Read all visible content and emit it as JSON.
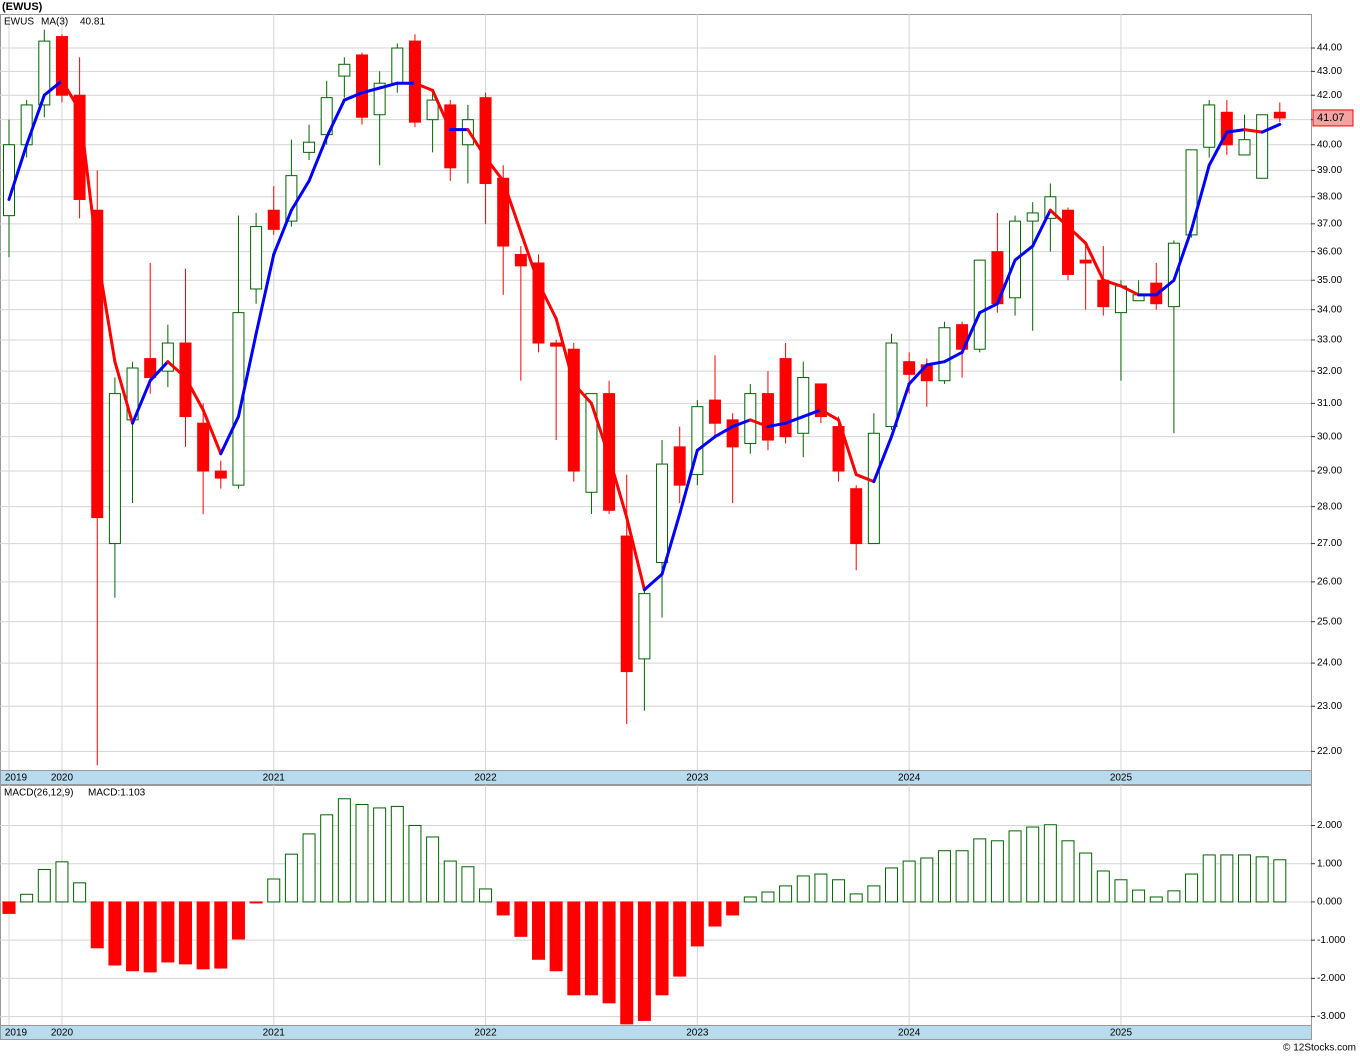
{
  "title": "(EWUS)",
  "footer": "© 12Stocks.com",
  "chart_data": [
    {
      "type": "candlestick",
      "name": "EWUS",
      "categories": [
        null,
        null,
        null,
        null,
        null,
        null,
        null,
        null,
        null,
        null,
        null,
        null,
        null,
        null,
        null,
        null,
        null,
        null,
        null,
        null,
        null,
        null,
        null,
        null,
        null,
        null,
        null,
        null,
        null,
        null,
        null,
        null,
        null,
        null,
        null,
        null,
        null,
        null,
        null,
        null,
        null,
        null,
        null,
        null,
        null,
        null,
        null,
        null,
        null,
        null,
        null,
        null,
        null,
        null,
        null,
        null,
        null,
        null,
        null,
        null,
        null,
        null,
        null,
        null,
        null,
        null,
        null,
        null,
        null,
        null,
        null,
        null,
        null
      ],
      "open": [
        37.3,
        40.0,
        41.6,
        44.5,
        42.0,
        37.5,
        27.0,
        30.5,
        32.4,
        32.0,
        32.9,
        30.4,
        29.0,
        28.6,
        34.7,
        37.5,
        37.1,
        39.7,
        40.4,
        42.8,
        43.7,
        41.2,
        42.5,
        44.3,
        41.0,
        41.6,
        40.0,
        41.9,
        38.7,
        35.9,
        35.6,
        32.9,
        32.7,
        28.4,
        31.3,
        27.2,
        24.1,
        26.5,
        29.7,
        28.9,
        31.1,
        30.5,
        29.8,
        31.3,
        32.4,
        30.1,
        31.6,
        30.3,
        28.5,
        27.0,
        30.3,
        32.3,
        32.2,
        31.7,
        33.5,
        32.7,
        36.0,
        34.4,
        37.1,
        37.2,
        37.5,
        35.7,
        35.0,
        33.9,
        34.3,
        34.9,
        34.1,
        36.6,
        39.9,
        41.3,
        39.6,
        38.7,
        41.3
      ],
      "high": [
        41.0,
        41.8,
        44.8,
        44.6,
        43.6,
        39.0,
        31.8,
        32.3,
        35.6,
        33.5,
        35.4,
        31.0,
        29.3,
        37.3,
        37.4,
        38.4,
        40.2,
        40.8,
        42.6,
        43.6,
        43.8,
        43.0,
        44.2,
        44.6,
        42.2,
        41.8,
        41.6,
        42.1,
        39.2,
        36.2,
        35.9,
        33.0,
        32.9,
        31.3,
        31.7,
        28.9,
        25.8,
        29.9,
        30.3,
        31.1,
        32.5,
        30.7,
        31.6,
        32.0,
        32.9,
        32.3,
        31.6,
        30.6,
        28.6,
        30.7,
        33.2,
        32.6,
        32.4,
        33.6,
        33.6,
        35.7,
        37.4,
        37.3,
        37.8,
        38.5,
        37.6,
        36.2,
        36.2,
        35.0,
        35.0,
        35.6,
        36.4,
        39.8,
        41.8,
        41.8,
        41.2,
        41.2,
        41.7
      ],
      "low": [
        35.8,
        39.5,
        41.1,
        41.7,
        37.2,
        21.7,
        25.6,
        28.1,
        31.3,
        31.5,
        29.7,
        27.8,
        28.5,
        28.5,
        34.2,
        36.6,
        36.9,
        39.4,
        40.0,
        41.9,
        40.8,
        39.2,
        42.1,
        40.7,
        39.7,
        38.6,
        38.5,
        37.0,
        34.5,
        31.7,
        32.6,
        29.9,
        28.7,
        27.8,
        27.8,
        22.6,
        22.9,
        25.1,
        28.1,
        28.6,
        30.0,
        28.1,
        29.5,
        29.6,
        29.8,
        29.4,
        30.4,
        28.7,
        26.3,
        27.0,
        30.2,
        31.3,
        30.9,
        31.6,
        31.8,
        32.6,
        33.9,
        33.8,
        33.3,
        36.0,
        35.0,
        34.0,
        33.8,
        31.7,
        34.3,
        34.0,
        30.1,
        36.5,
        39.5,
        39.6,
        39.6,
        38.7,
        40.9
      ],
      "close": [
        40.0,
        41.6,
        44.3,
        42.0,
        37.9,
        27.7,
        31.3,
        32.1,
        31.8,
        32.9,
        30.6,
        29.0,
        28.8,
        33.9,
        36.9,
        36.8,
        38.8,
        40.1,
        41.9,
        43.3,
        41.1,
        42.5,
        44.0,
        40.9,
        41.8,
        39.1,
        41.0,
        38.5,
        36.2,
        35.5,
        32.9,
        32.8,
        29.0,
        31.3,
        27.9,
        23.8,
        25.7,
        29.2,
        28.6,
        30.9,
        30.4,
        29.7,
        31.3,
        29.9,
        30.0,
        31.8,
        30.6,
        29.0,
        27.0,
        30.1,
        32.9,
        31.9,
        31.7,
        33.4,
        32.7,
        35.7,
        34.2,
        37.1,
        37.4,
        38.0,
        35.2,
        35.6,
        34.1,
        34.8,
        34.5,
        34.2,
        36.3,
        39.8,
        41.6,
        40.0,
        40.2,
        41.2,
        41.07
      ],
      "up_color": "#006400",
      "down_color": "#ff0000",
      "badge_color": "#f4a3a3",
      "series": [
        {
          "name": "MA(3)",
          "color": "#0000ff",
          "down_color": "#ff0000",
          "values": [
            37.9,
            40.0,
            42.0,
            42.6,
            41.4,
            35.9,
            32.3,
            30.4,
            31.7,
            32.3,
            31.8,
            30.8,
            29.5,
            30.6,
            33.2,
            35.9,
            37.5,
            38.6,
            40.3,
            41.8,
            42.1,
            42.3,
            42.5,
            42.5,
            42.2,
            40.6,
            40.6,
            39.5,
            38.6,
            36.7,
            34.9,
            33.7,
            31.6,
            31.0,
            29.4,
            27.7,
            25.8,
            26.2,
            27.8,
            29.6,
            30.0,
            30.3,
            30.5,
            30.3,
            30.4,
            30.6,
            30.8,
            30.5,
            28.9,
            28.7,
            30.0,
            31.6,
            32.2,
            32.3,
            32.6,
            33.9,
            34.2,
            35.7,
            36.2,
            37.5,
            36.9,
            36.3,
            35.0,
            34.8,
            34.5,
            34.5,
            35.0,
            36.8,
            39.2,
            40.5,
            40.6,
            40.5,
            40.81
          ]
        }
      ],
      "log_scale": true,
      "grid": true,
      "ylim": [
        21.6,
        45.5
      ],
      "yticks": [
        {
          "value": 22,
          "label": "22.00"
        },
        {
          "value": 23,
          "label": "23.00"
        },
        {
          "value": 24,
          "label": "24.00"
        },
        {
          "value": 25,
          "label": "25.00"
        },
        {
          "value": 26,
          "label": "26.00"
        },
        {
          "value": 27,
          "label": "27.00"
        },
        {
          "value": 28,
          "label": "28.00"
        },
        {
          "value": 29,
          "label": "29.00"
        },
        {
          "value": 30,
          "label": "30.00"
        },
        {
          "value": 31,
          "label": "31.00"
        },
        {
          "value": 32,
          "label": "32.00"
        },
        {
          "value": 33,
          "label": "33.00"
        },
        {
          "value": 34,
          "label": "34.00"
        },
        {
          "value": 35,
          "label": "35.00"
        },
        {
          "value": 36,
          "label": "36.00"
        },
        {
          "value": 37,
          "label": "37.00"
        },
        {
          "value": 38,
          "label": "38.00"
        },
        {
          "value": 39,
          "label": "39.00"
        },
        {
          "value": 40,
          "label": "40.00"
        },
        {
          "value": 41,
          "label": "41.00"
        },
        {
          "value": 42,
          "label": "42.00"
        },
        {
          "value": 43,
          "label": "43.00"
        },
        {
          "value": 44,
          "label": "44.00"
        }
      ],
      "xticks": [
        {
          "value": 0,
          "label": "2019"
        },
        {
          "value": 3,
          "label": "2020"
        },
        {
          "value": 15,
          "label": "2021"
        },
        {
          "value": 27,
          "label": "2022"
        },
        {
          "value": 39,
          "label": "2023"
        },
        {
          "value": 51,
          "label": "2024"
        },
        {
          "value": 63,
          "label": "2025"
        }
      ]
    },
    {
      "type": "bar",
      "title": "MACD(26,12,9)",
      "subtitle": "MACD:1.103",
      "categories": [
        null,
        null,
        null,
        null,
        null,
        null,
        null,
        null,
        null,
        null,
        null,
        null,
        null,
        null,
        null,
        null,
        null,
        null,
        null,
        null,
        null,
        null,
        null,
        null,
        null,
        null,
        null,
        null,
        null,
        null,
        null,
        null,
        null,
        null,
        null,
        null,
        null,
        null,
        null,
        null,
        null,
        null,
        null,
        null,
        null,
        null,
        null,
        null,
        null,
        null,
        null,
        null,
        null,
        null,
        null,
        null,
        null,
        null,
        null,
        null,
        null,
        null,
        null,
        null,
        null,
        null,
        null,
        null,
        null,
        null,
        null,
        null,
        null
      ],
      "values": [
        -0.3,
        0.2,
        0.85,
        1.05,
        0.5,
        -1.2,
        -1.65,
        -1.8,
        -1.83,
        -1.57,
        -1.62,
        -1.75,
        -1.73,
        -0.97,
        -0.02,
        0.6,
        1.25,
        1.78,
        2.28,
        2.7,
        2.55,
        2.46,
        2.5,
        2.0,
        1.7,
        1.07,
        0.92,
        0.34,
        -0.34,
        -0.9,
        -1.5,
        -1.8,
        -2.43,
        -2.43,
        -2.64,
        -3.19,
        -3.1,
        -2.43,
        -1.94,
        -1.15,
        -0.63,
        -0.34,
        0.13,
        0.26,
        0.42,
        0.68,
        0.73,
        0.58,
        0.21,
        0.42,
        0.89,
        1.07,
        1.15,
        1.34,
        1.34,
        1.65,
        1.6,
        1.86,
        1.96,
        2.02,
        1.6,
        1.28,
        0.81,
        0.58,
        0.31,
        0.13,
        0.29,
        0.73,
        1.23,
        1.23,
        1.23,
        1.18,
        1.103
      ],
      "up_color": "#006400",
      "down_color": "#ff0000",
      "subtitle_color": "#0000ff",
      "grid": true,
      "ylim": [
        -3.22,
        3.06
      ],
      "yticks": [
        {
          "value": -3,
          "label": "-3.000"
        },
        {
          "value": -2,
          "label": "-2.000"
        },
        {
          "value": -1,
          "label": "-1.000"
        },
        {
          "value": 0,
          "label": "0.000"
        },
        {
          "value": 1,
          "label": "1.000"
        },
        {
          "value": 2,
          "label": "2.000"
        }
      ],
      "xticks": [
        {
          "value": 0,
          "label": "2019"
        },
        {
          "value": 3,
          "label": "2020"
        },
        {
          "value": 15,
          "label": "2021"
        },
        {
          "value": 27,
          "label": "2022"
        },
        {
          "value": 39,
          "label": "2023"
        },
        {
          "value": 51,
          "label": "2024"
        },
        {
          "value": 63,
          "label": "2025"
        }
      ]
    }
  ]
}
